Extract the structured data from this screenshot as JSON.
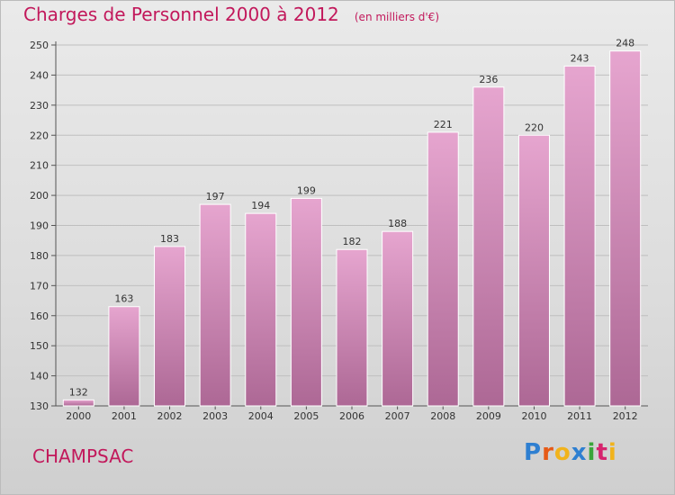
{
  "header": {
    "title": "Charges de Personnel 2000 à 2012",
    "subtitle": "(en milliers d'€)"
  },
  "footer": {
    "place": "CHAMPSAC",
    "logo": "Proxiti",
    "logo_colors": [
      "#2e7fd1",
      "#e65a16",
      "#f1b31c",
      "#2e7fd1",
      "#3aa53a",
      "#d6246e",
      "#f1b31c"
    ]
  },
  "colors": {
    "title": "#c2185b",
    "bar_top": "#e6a5cf",
    "bar_bottom": "#ad6895",
    "background_top": "#eaeaea",
    "background_bottom": "#cfcfcf"
  },
  "chart_data": {
    "type": "bar",
    "categories": [
      "2000",
      "2001",
      "2002",
      "2003",
      "2004",
      "2005",
      "2006",
      "2007",
      "2008",
      "2009",
      "2010",
      "2011",
      "2012"
    ],
    "values": [
      132,
      163,
      183,
      197,
      194,
      199,
      182,
      188,
      221,
      236,
      220,
      243,
      248
    ],
    "ylim": [
      130,
      250
    ],
    "yticks": [
      130,
      140,
      150,
      160,
      170,
      180,
      190,
      200,
      210,
      220,
      230,
      240,
      250
    ],
    "grid": true,
    "data_labels": true,
    "xlabel": "",
    "ylabel": ""
  }
}
